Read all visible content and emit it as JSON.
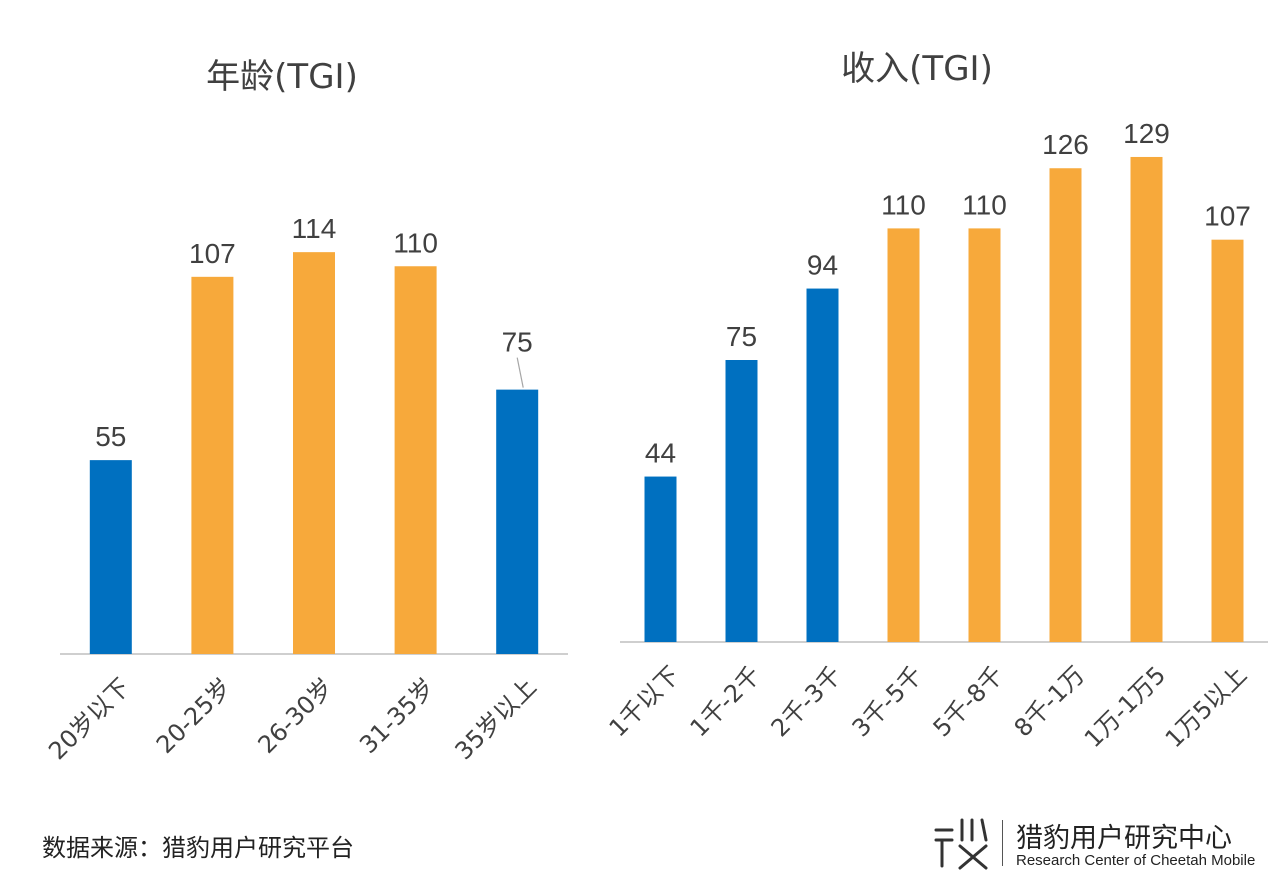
{
  "chart_data": [
    {
      "type": "bar",
      "title": "年龄(TGI)",
      "categories": [
        "20岁以下",
        "20-25岁",
        "26-30岁",
        "31-35岁",
        "35岁以上"
      ],
      "values": [
        55,
        107,
        114,
        110,
        75
      ],
      "bar_colors": [
        "#0070c0",
        "#f7a93b",
        "#f7a93b",
        "#f7a93b",
        "#0070c0"
      ],
      "ylim": [
        0,
        130
      ],
      "grid": false
    },
    {
      "type": "bar",
      "title": "收入(TGI)",
      "categories": [
        "1千以下",
        "1千-2千",
        "2千-3千",
        "3千-5千",
        "5千-8千",
        "8千-1万",
        "1万-1万5",
        "1万5以上"
      ],
      "values": [
        44,
        75,
        94,
        110,
        110,
        126,
        129,
        107
      ],
      "bar_colors": [
        "#0070c0",
        "#0070c0",
        "#0070c0",
        "#f7a93b",
        "#f7a93b",
        "#f7a93b",
        "#f7a93b",
        "#f7a93b"
      ],
      "ylim": [
        0,
        130
      ],
      "grid": false
    }
  ],
  "footer": {
    "source": "数据来源：猎豹用户研究平台"
  },
  "logo": {
    "name_cn": "猎豹用户研究中心",
    "name_en": "Research Center of Cheetah Mobile"
  },
  "colors": {
    "blue": "#0070c0",
    "orange": "#f7a93b",
    "axis": "#bfbfbf",
    "text": "#404040"
  },
  "icons": [
    "cheetah-logo-icon"
  ]
}
